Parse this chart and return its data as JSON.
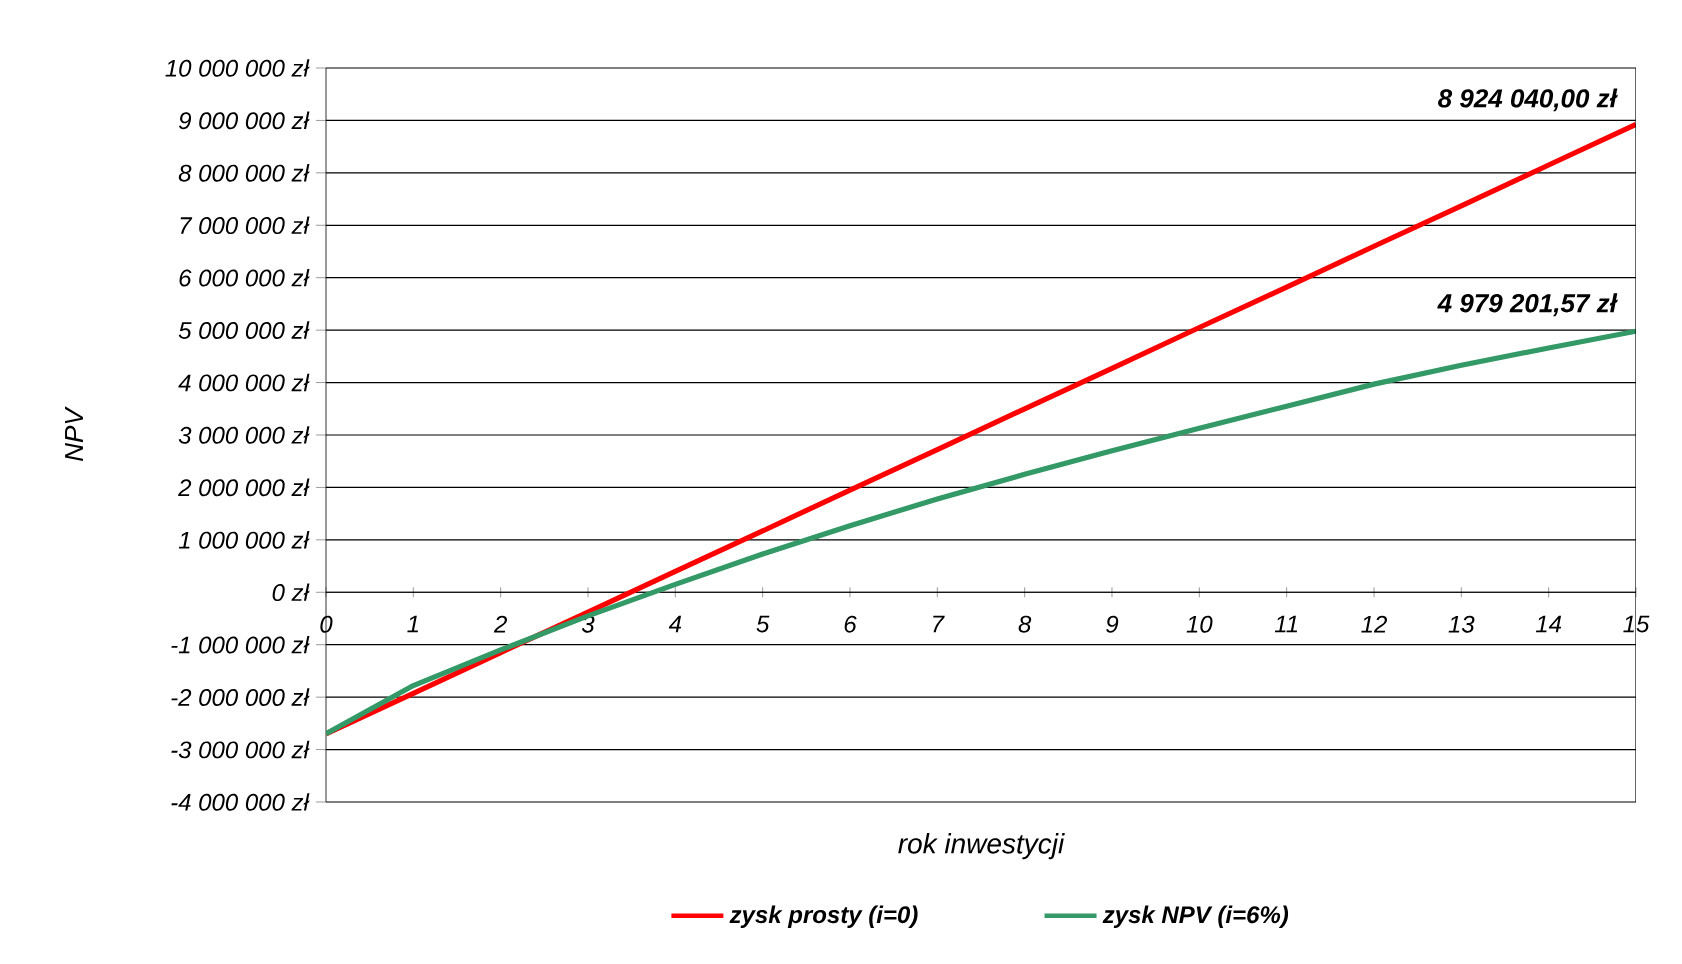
{
  "chart_data": {
    "type": "line",
    "xlabel": "rok inwestycji",
    "ylabel": "NPV",
    "x": [
      0,
      1,
      2,
      3,
      4,
      5,
      6,
      7,
      8,
      9,
      10,
      11,
      12,
      13,
      14,
      15
    ],
    "series": [
      {
        "name": "zysk prosty (i=0)",
        "color": "#ff0000",
        "values": [
          -2700000,
          -1930000,
          -1150000,
          -380000,
          400000,
          1170000,
          1950000,
          2720000,
          3500000,
          4270000,
          5050000,
          5820000,
          6600000,
          7370000,
          8150000,
          8924040
        ]
      },
      {
        "name": "zysk NPV (i=6%)",
        "color": "#339966",
        "values": [
          -2700000,
          -1780000,
          -1100000,
          -450000,
          150000,
          730000,
          1270000,
          1780000,
          2250000,
          2700000,
          3130000,
          3550000,
          3970000,
          4330000,
          4660000,
          4979201.57
        ]
      }
    ],
    "xlim": [
      0,
      15
    ],
    "xticks": [
      0,
      1,
      2,
      3,
      4,
      5,
      6,
      7,
      8,
      9,
      10,
      11,
      12,
      13,
      14,
      15
    ],
    "ylim": [
      -4000000,
      10000000
    ],
    "yticks": [
      {
        "value": -4000000,
        "label": "-4 000 000 zł"
      },
      {
        "value": -3000000,
        "label": "-3 000 000 zł"
      },
      {
        "value": -2000000,
        "label": "-2 000 000 zł"
      },
      {
        "value": -1000000,
        "label": "-1 000 000 zł"
      },
      {
        "value": 0,
        "label": "0 zł"
      },
      {
        "value": 1000000,
        "label": "1 000 000 zł"
      },
      {
        "value": 2000000,
        "label": "2 000 000 zł"
      },
      {
        "value": 3000000,
        "label": "3 000 000 zł"
      },
      {
        "value": 4000000,
        "label": "4 000 000 zł"
      },
      {
        "value": 5000000,
        "label": "5 000 000 zł"
      },
      {
        "value": 6000000,
        "label": "6 000 000 zł"
      },
      {
        "value": 7000000,
        "label": "7 000 000 zł"
      },
      {
        "value": 8000000,
        "label": "8 000 000 zł"
      },
      {
        "value": 9000000,
        "label": "9 000 000 zł"
      },
      {
        "value": 10000000,
        "label": "10 000 000 zł"
      }
    ],
    "grid": "y",
    "legend": "bottom",
    "marker": "none",
    "line_style": "solid",
    "annotations": [
      {
        "text": "8 924 040,00 zł",
        "x": 15,
        "y": 8924040
      },
      {
        "text": "4 979 201,57 zł",
        "x": 15,
        "y": 4979201.57
      }
    ]
  }
}
